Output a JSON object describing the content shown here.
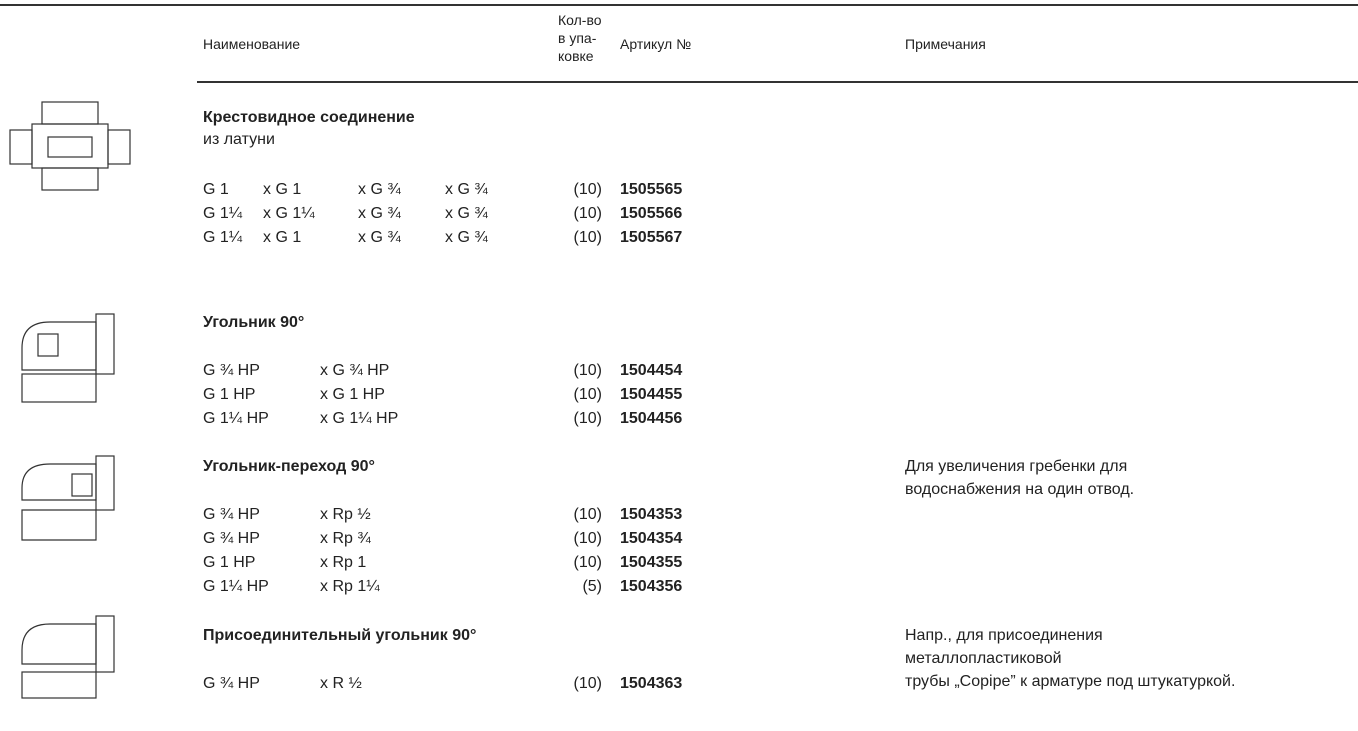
{
  "header": {
    "name": "Наименование",
    "qty": [
      "Кол-во",
      "в упа-",
      "ковке"
    ],
    "article": "Артикул №",
    "notes": "Примечания"
  },
  "sections": [
    {
      "title": "Крестовидное соединение",
      "subtitle": "из латуни",
      "rows": [
        {
          "cells": [
            "G 1",
            "x G 1",
            "x G ¾",
            "x G ¾"
          ],
          "qty": "(10)",
          "article": "1505565"
        },
        {
          "cells": [
            "G 1¼",
            "x G 1¼",
            "x G ¾",
            "x G ¾"
          ],
          "qty": "(10)",
          "article": "1505566"
        },
        {
          "cells": [
            "G 1¼",
            "x G 1",
            "x G ¾",
            "x G ¾"
          ],
          "qty": "(10)",
          "article": "1505567"
        }
      ]
    },
    {
      "title": "Угольник 90°",
      "rows": [
        {
          "cells": [
            "G ¾ HP",
            "x G ¾ HP"
          ],
          "qty": "(10)",
          "article": "1504454"
        },
        {
          "cells": [
            "G 1 HP",
            "x G 1 HP"
          ],
          "qty": "(10)",
          "article": "1504455"
        },
        {
          "cells": [
            "G 1¼ HP",
            "x G 1¼ HP"
          ],
          "qty": "(10)",
          "article": "1504456"
        }
      ]
    },
    {
      "title": "Угольник-переход 90°",
      "note": [
        "Для увеличения гребенки для",
        "водоснабжения на один отвод."
      ],
      "rows": [
        {
          "cells": [
            "G ¾ HP",
            "x Rp ½"
          ],
          "qty": "(10)",
          "article": "1504353"
        },
        {
          "cells": [
            "G ¾ HP",
            "x Rp ¾"
          ],
          "qty": "(10)",
          "article": "1504354"
        },
        {
          "cells": [
            "G 1 HP",
            "x Rp 1"
          ],
          "qty": "(10)",
          "article": "1504355"
        },
        {
          "cells": [
            "G 1¼ HP",
            "x Rp 1¼"
          ],
          "qty": "(5)",
          "article": "1504356"
        }
      ]
    },
    {
      "title": "Присоединительный угольник 90°",
      "note": [
        "Напр., для присоединения",
        "металлопластиковой",
        "трубы „Copipe” к арматуре под штукатуркой."
      ],
      "rows": [
        {
          "cells": [
            "G ¾ HP",
            "x R ½"
          ],
          "qty": "(10)",
          "article": "1504363"
        }
      ]
    }
  ]
}
